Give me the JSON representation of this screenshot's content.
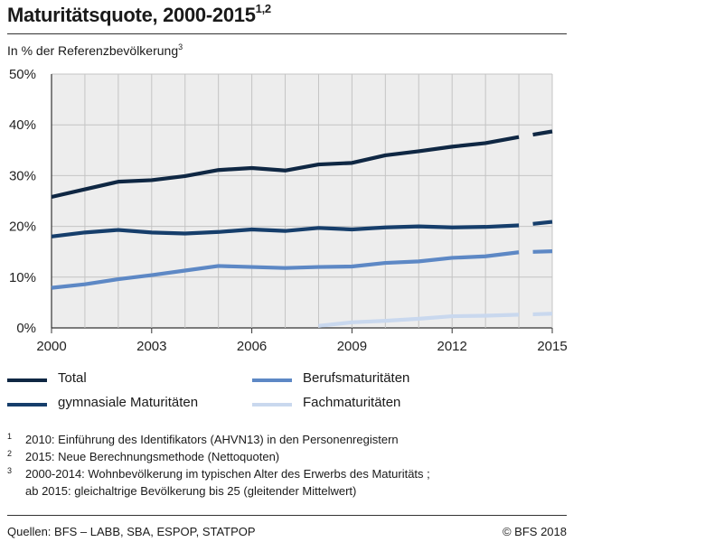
{
  "header": {
    "title": "Maturitätsquote, 2000-2015",
    "title_sup": "1,2",
    "subtitle": "In % der Referenzbevölkerung",
    "subtitle_sup": "3"
  },
  "chart_data": {
    "type": "line",
    "title": "Maturitätsquote, 2000-2015",
    "ylabel": "In % der Referenzbevölkerung",
    "xlim": [
      2000,
      2015
    ],
    "ylim": [
      0,
      50
    ],
    "x_ticks": [
      2000,
      2003,
      2006,
      2009,
      2012,
      2015
    ],
    "y_ticks": [
      0,
      10,
      20,
      30,
      40,
      50
    ],
    "y_tick_labels": [
      "0%",
      "10%",
      "20%",
      "30%",
      "40%",
      "50%"
    ],
    "grid": true,
    "method_break": "Neue Berechnungsmethode ab 2015 (Lücke zwischen 2014 und 2015)",
    "series": [
      {
        "name": "Total",
        "color": "#0f2743",
        "x": [
          2000,
          2001,
          2002,
          2003,
          2004,
          2005,
          2006,
          2007,
          2008,
          2009,
          2010,
          2011,
          2012,
          2013,
          2014,
          2015
        ],
        "values": [
          25.8,
          27.3,
          28.8,
          29.1,
          29.9,
          31.1,
          31.5,
          31.0,
          32.2,
          32.5,
          34.0,
          34.8,
          35.7,
          36.4,
          37.6,
          38.7
        ]
      },
      {
        "name": "gymnasiale Maturitäten",
        "color": "#163e6b",
        "x": [
          2000,
          2001,
          2002,
          2003,
          2004,
          2005,
          2006,
          2007,
          2008,
          2009,
          2010,
          2011,
          2012,
          2013,
          2014,
          2015
        ],
        "values": [
          18.0,
          18.8,
          19.3,
          18.8,
          18.6,
          18.9,
          19.4,
          19.1,
          19.7,
          19.4,
          19.8,
          20.0,
          19.8,
          19.9,
          20.2,
          20.9
        ]
      },
      {
        "name": "Berufsmaturitäten",
        "color": "#5d88c5",
        "x": [
          2000,
          2001,
          2002,
          2003,
          2004,
          2005,
          2006,
          2007,
          2008,
          2009,
          2010,
          2011,
          2012,
          2013,
          2014,
          2015
        ],
        "values": [
          7.9,
          8.6,
          9.6,
          10.4,
          11.3,
          12.2,
          12.0,
          11.8,
          12.0,
          12.1,
          12.8,
          13.1,
          13.8,
          14.1,
          14.9,
          15.1
        ]
      },
      {
        "name": "Fachmaturitäten",
        "color": "#c9d8ee",
        "x": [
          2008,
          2009,
          2010,
          2011,
          2012,
          2013,
          2014,
          2015
        ],
        "values": [
          0.4,
          1.1,
          1.4,
          1.8,
          2.3,
          2.4,
          2.6,
          2.8
        ]
      }
    ]
  },
  "notes": [
    {
      "num": "1",
      "text": "2010: Einführung des Identifikators (AHVN13) in den Personenregistern"
    },
    {
      "num": "2",
      "text": "2015: Neue Berechnungsmethode (Nettoquoten)"
    },
    {
      "num": "3",
      "text": "2000-2014: Wohnbevölkerung im typischen Alter des Erwerbs des Maturitäts ;"
    },
    {
      "num": "",
      "text": "ab 2015: gleichaltrige Bevölkerung bis 25 (gleitender Mittelwert)"
    }
  ],
  "footer": {
    "source": "Quellen: BFS – LABB, SBA, ESPOP, STATPOP",
    "copyright": "© BFS 2018"
  }
}
